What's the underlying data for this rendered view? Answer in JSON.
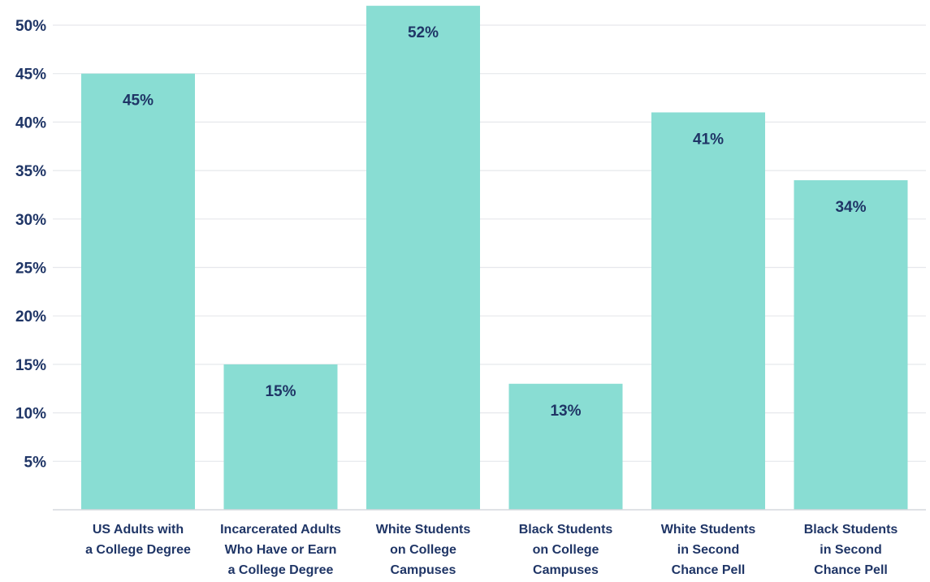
{
  "chart_data": {
    "type": "bar",
    "title": "",
    "xlabel": "",
    "ylabel": "",
    "categories": [
      [
        "US Adults with",
        "a College Degree"
      ],
      [
        "Incarcerated Adults",
        "Who Have or Earn",
        "a College Degree"
      ],
      [
        "White Students",
        "on College",
        "Campuses"
      ],
      [
        "Black Students",
        "on College",
        "Campuses"
      ],
      [
        "White Students",
        "in Second",
        "Chance Pell"
      ],
      [
        "Black Students",
        "in Second",
        "Chance Pell"
      ]
    ],
    "values": [
      45,
      15,
      52,
      13,
      41,
      34
    ],
    "value_labels": [
      "45%",
      "15%",
      "52%",
      "13%",
      "41%",
      "34%"
    ],
    "ylim": [
      0,
      52
    ],
    "yticks": [
      5,
      10,
      15,
      20,
      25,
      30,
      35,
      40,
      45,
      50
    ],
    "ytick_labels": [
      "5%",
      "10%",
      "15%",
      "20%",
      "25%",
      "30%",
      "35%",
      "40%",
      "45%",
      "50%"
    ],
    "grid": true,
    "legend": "none",
    "colors": {
      "bar": "#89DDD3",
      "value_label": "#1F3566",
      "axis_label": "#1F3566",
      "grid": "#E6E8EC",
      "baseline": "#D5D8DD"
    }
  }
}
